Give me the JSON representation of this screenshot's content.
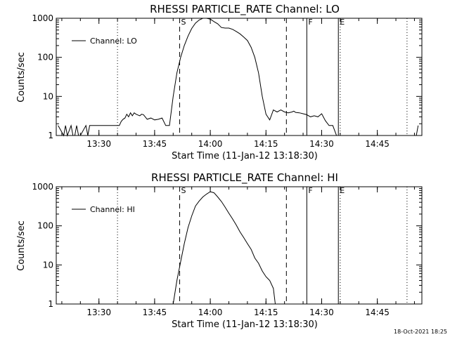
{
  "footer": {
    "timestamp": "18-Oct-2021 18:25"
  },
  "chart_data": [
    {
      "type": "line",
      "title": "RHESSI PARTICLE_RATE Channel: LO",
      "xlabel": "Start Time (11-Jan-12 13:18:30)",
      "ylabel": "Counts/sec",
      "xlim": [
        "13:18:30",
        "14:57:00"
      ],
      "ylim": [
        1,
        1000
      ],
      "yscale": "log",
      "xtick_labels": [
        "13:30",
        "13:45",
        "14:00",
        "14:15",
        "14:30",
        "14:45"
      ],
      "ytick_labels": [
        "1",
        "10",
        "100",
        "1000"
      ],
      "grid": false,
      "legend_position": "top-left",
      "legend": [
        "Channel: LO"
      ],
      "series": [
        {
          "name": "Channel: LO",
          "x": [
            "13:19:00",
            "13:20:30",
            "13:21:00",
            "13:21:30",
            "13:22:30",
            "13:23:00",
            "13:23:30",
            "13:24:00",
            "13:24:30",
            "13:25:00",
            "13:26:30",
            "13:27:00",
            "13:27:30",
            "13:35:00",
            "13:35:30",
            "13:36:00",
            "13:36:30",
            "13:37:00",
            "13:37:30",
            "13:38:00",
            "13:38:30",
            "13:39:00",
            "13:39:30",
            "13:40:00",
            "13:41:00",
            "13:41:30",
            "13:42:00",
            "13:43:00",
            "13:44:00",
            "13:45:00",
            "13:46:00",
            "13:47:00",
            "13:48:00",
            "13:49:00",
            "13:50:00",
            "13:51:00",
            "13:52:00",
            "13:53:00",
            "13:54:00",
            "13:55:00",
            "13:56:00",
            "13:57:00",
            "13:58:00",
            "13:59:00",
            "14:00:00",
            "14:01:00",
            "14:02:00",
            "14:03:00",
            "14:04:00",
            "14:05:00",
            "14:06:00",
            "14:07:00",
            "14:08:00",
            "14:09:00",
            "14:10:00",
            "14:11:00",
            "14:12:00",
            "14:13:00",
            "14:14:00",
            "14:15:00",
            "14:16:00",
            "14:17:00",
            "14:18:00",
            "14:19:00",
            "14:20:00",
            "14:21:00",
            "14:22:00",
            "14:22:30",
            "14:23:00",
            "14:24:00",
            "14:25:00",
            "14:26:00",
            "14:27:00",
            "14:28:00",
            "14:29:00",
            "14:30:00",
            "14:31:00",
            "14:32:00",
            "14:33:00",
            "14:34:00",
            "14:35:00",
            "14:36:00",
            "14:37:00",
            "14:38:00",
            "14:39:00",
            "14:40:00",
            "14:41:00",
            "14:55:30",
            "14:56:00"
          ],
          "values": [
            1.8,
            1,
            1.8,
            1,
            1.8,
            1,
            1,
            1.8,
            1,
            1,
            1.8,
            1,
            1.8,
            1.8,
            1.8,
            2.3,
            2.6,
            2.8,
            3.5,
            3.0,
            3.8,
            3.2,
            3.8,
            3.5,
            3.2,
            3.5,
            3.4,
            2.6,
            2.8,
            2.5,
            2.6,
            2.8,
            1.8,
            1.8,
            10,
            40,
            100,
            200,
            350,
            550,
            750,
            900,
            1000,
            1000,
            950,
            820,
            720,
            580,
            560,
            560,
            520,
            460,
            400,
            330,
            270,
            180,
            100,
            40,
            10,
            3.5,
            2.5,
            4.5,
            4.0,
            4.5,
            4.0,
            3.8,
            4.0,
            4.2,
            3.9,
            3.8,
            3.6,
            3.4,
            3.0,
            3.2,
            3.0,
            3.6,
            2.4,
            1.8,
            1.8,
            1,
            1,
            1,
            1,
            1,
            1,
            1,
            1,
            1,
            1.8
          ]
        }
      ],
      "markers": [
        {
          "label": "S",
          "x": "13:51:45",
          "style": "dashed"
        },
        {
          "label": "",
          "x": "14:20:30",
          "style": "dashed"
        },
        {
          "label": "F",
          "x": "14:26:00",
          "style": "solid"
        },
        {
          "label": "E",
          "x": "14:34:30",
          "style": "solid"
        },
        {
          "label": "",
          "x": "13:35:00",
          "style": "dotted"
        },
        {
          "label": "",
          "x": "14:35:00",
          "style": "dotted"
        },
        {
          "label": "",
          "x": "14:53:00",
          "style": "dotted"
        }
      ]
    },
    {
      "type": "line",
      "title": "RHESSI PARTICLE_RATE Channel: HI",
      "xlabel": "Start Time (11-Jan-12 13:18:30)",
      "ylabel": "Counts/sec",
      "xlim": [
        "13:18:30",
        "14:57:00"
      ],
      "ylim": [
        1,
        1000
      ],
      "yscale": "log",
      "xtick_labels": [
        "13:30",
        "13:45",
        "14:00",
        "14:15",
        "14:30",
        "14:45"
      ],
      "ytick_labels": [
        "1",
        "10",
        "100",
        "1000"
      ],
      "grid": false,
      "legend_position": "top-left",
      "legend": [
        "Channel: HI"
      ],
      "series": [
        {
          "name": "Channel: HI",
          "x": [
            "13:50:00",
            "13:51:00",
            "13:52:00",
            "13:53:00",
            "13:54:00",
            "13:55:00",
            "13:56:00",
            "13:57:00",
            "13:58:00",
            "13:59:00",
            "14:00:00",
            "14:01:00",
            "14:02:00",
            "14:03:00",
            "14:04:00",
            "14:05:00",
            "14:06:00",
            "14:07:00",
            "14:08:00",
            "14:09:00",
            "14:10:00",
            "14:11:00",
            "14:12:00",
            "14:13:00",
            "14:14:00",
            "14:15:00",
            "14:16:00",
            "14:17:00",
            "14:17:30"
          ],
          "values": [
            1,
            4,
            12,
            35,
            90,
            180,
            320,
            430,
            550,
            650,
            750,
            700,
            550,
            420,
            300,
            210,
            150,
            105,
            70,
            50,
            35,
            25,
            15,
            11,
            7,
            5,
            4,
            2.5,
            1
          ]
        }
      ],
      "markers": [
        {
          "label": "S",
          "x": "13:51:45",
          "style": "dashed"
        },
        {
          "label": "",
          "x": "14:20:30",
          "style": "dashed"
        },
        {
          "label": "F",
          "x": "14:26:00",
          "style": "solid"
        },
        {
          "label": "E",
          "x": "14:34:30",
          "style": "solid"
        },
        {
          "label": "",
          "x": "13:35:00",
          "style": "dotted"
        },
        {
          "label": "",
          "x": "14:35:00",
          "style": "dotted"
        },
        {
          "label": "",
          "x": "14:53:00",
          "style": "dotted"
        }
      ]
    }
  ]
}
